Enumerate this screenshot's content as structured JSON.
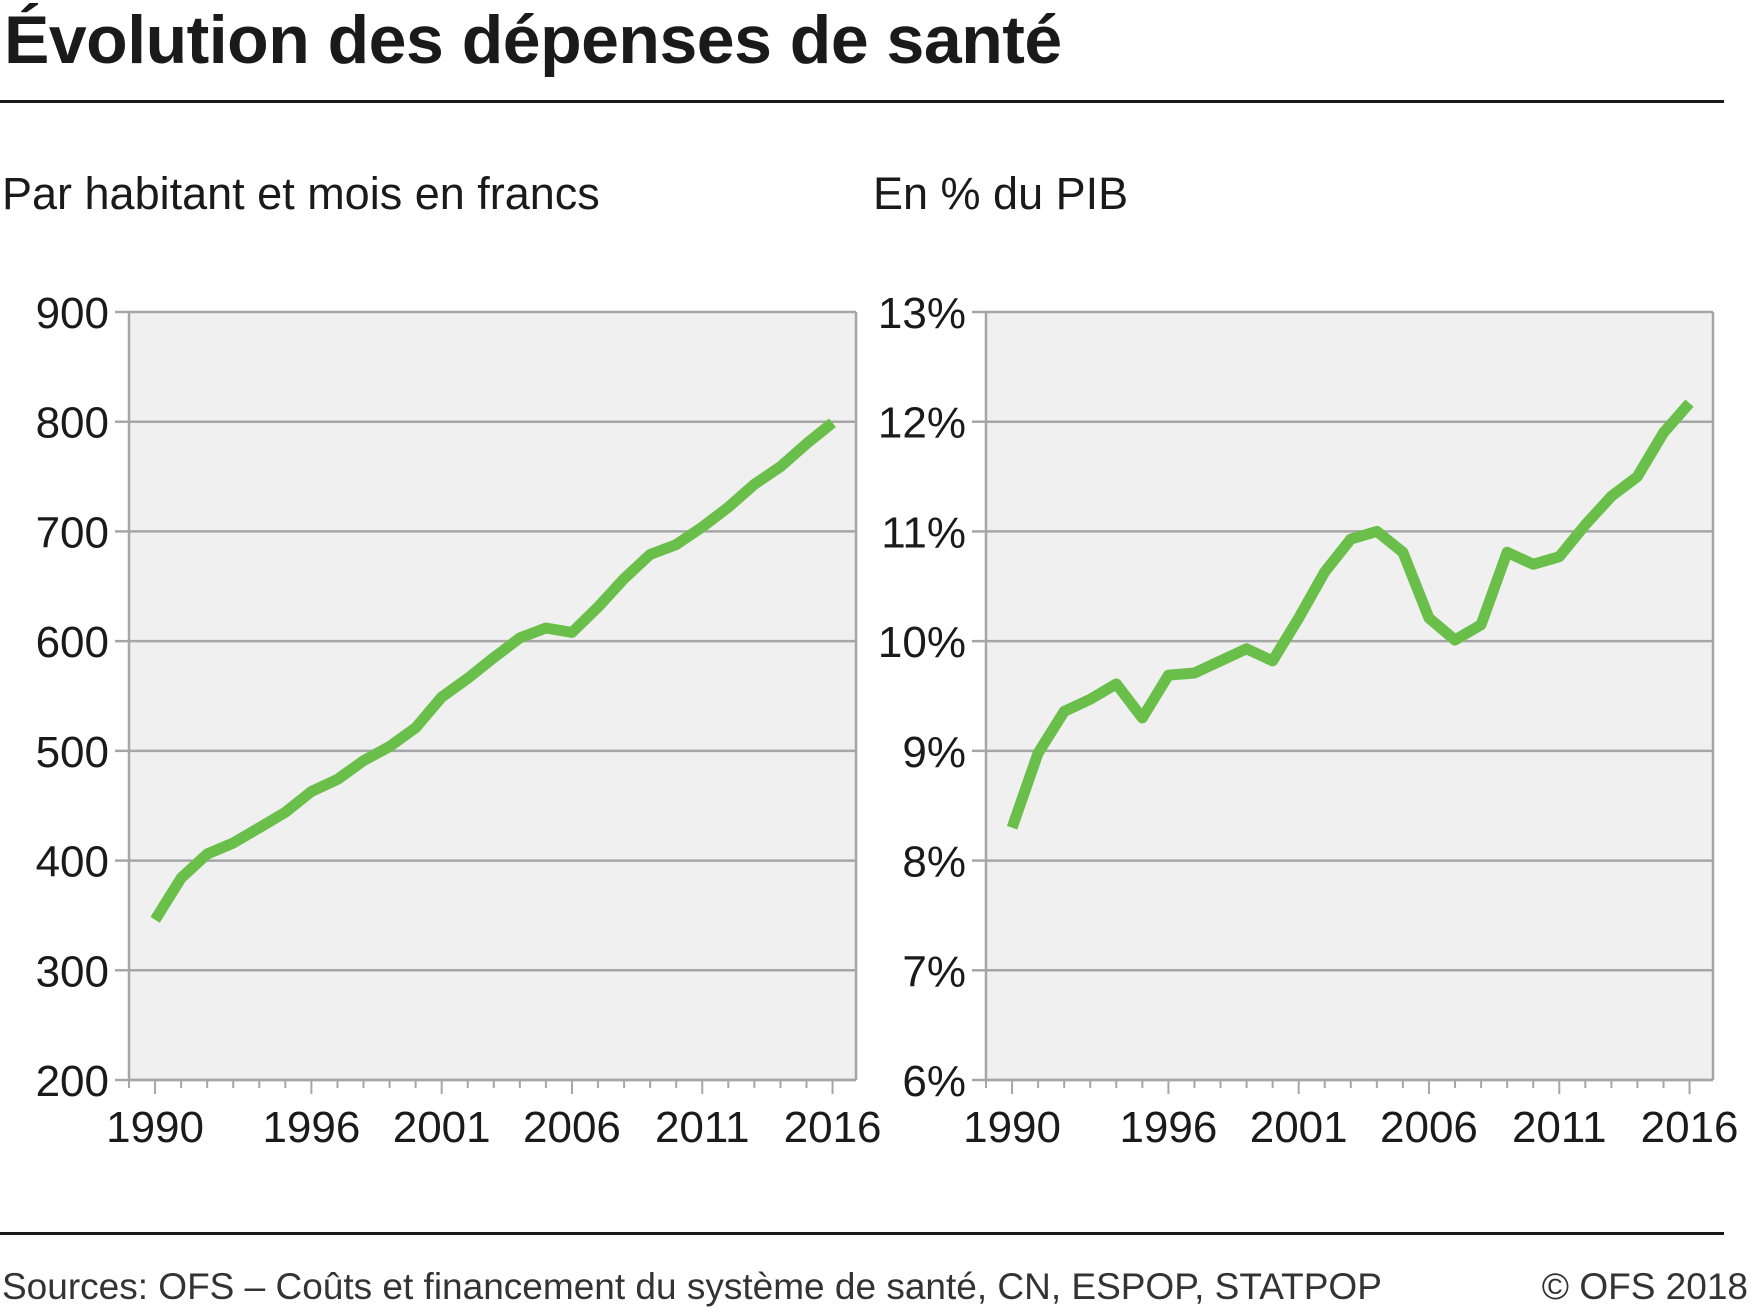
{
  "header": {
    "title": "Évolution des dépenses de santé"
  },
  "footer": {
    "source": "Sources: OFS – Coûts et financement du système de santé, CN, ESPOP, STATPOP",
    "copyright": "© OFS 2018"
  },
  "colors": {
    "line": "#6abf4b",
    "plot_background": "#f0f0f0",
    "grid": "#a6a6a6",
    "rule": "#1a1a1a"
  },
  "chart_data": [
    {
      "type": "line",
      "title": "Par habitant et mois en francs",
      "xlabel": "",
      "ylabel": "",
      "grid": true,
      "xlim": [
        1989,
        2016.9
      ],
      "ylim": [
        200,
        900
      ],
      "y_ticks": [
        200,
        300,
        400,
        500,
        600,
        700,
        800,
        900
      ],
      "y_tick_labels": [
        "200",
        "300",
        "400",
        "500",
        "600",
        "700",
        "800",
        "900"
      ],
      "x_ticks": [
        1990,
        1996,
        2001,
        2006,
        2011,
        2016
      ],
      "x_tick_labels": [
        "1990",
        "1996",
        "2001",
        "2006",
        "2011",
        "2016"
      ],
      "x": [
        1990,
        1991,
        1992,
        1993,
        1994,
        1995,
        1996,
        1997,
        1998,
        1999,
        2000,
        2001,
        2002,
        2003,
        2004,
        2005,
        2006,
        2007,
        2008,
        2009,
        2010,
        2011,
        2012,
        2013,
        2014,
        2015,
        2016
      ],
      "series": [
        {
          "values": [
            346,
            384,
            406,
            416,
            430,
            444,
            463,
            474,
            491,
            504,
            521,
            549,
            566,
            585,
            603,
            612,
            608,
            631,
            657,
            679,
            688,
            704,
            722,
            743,
            759,
            780,
            799
          ]
        }
      ]
    },
    {
      "type": "line",
      "title": "En % du PIB",
      "xlabel": "",
      "ylabel": "",
      "grid": true,
      "xlim": [
        1989,
        2016.9
      ],
      "ylim": [
        6,
        13
      ],
      "y_ticks": [
        6,
        7,
        8,
        9,
        10,
        11,
        12,
        13
      ],
      "y_tick_labels": [
        "6%",
        "7%",
        "8%",
        "9%",
        "10%",
        "11%",
        "12%",
        "13%"
      ],
      "x_ticks": [
        1990,
        1996,
        2001,
        2006,
        2011,
        2016
      ],
      "x_tick_labels": [
        "1990",
        "1996",
        "2001",
        "2006",
        "2011",
        "2016"
      ],
      "x": [
        1990,
        1991,
        1992,
        1993,
        1994,
        1995,
        1996,
        1997,
        1998,
        1999,
        2000,
        2001,
        2002,
        2003,
        2004,
        2005,
        2006,
        2007,
        2008,
        2009,
        2010,
        2011,
        2012,
        2013,
        2014,
        2015,
        2016
      ],
      "series": [
        {
          "values": [
            8.3,
            8.98,
            9.36,
            9.47,
            9.61,
            9.3,
            9.69,
            9.71,
            9.82,
            9.93,
            9.82,
            10.21,
            10.63,
            10.93,
            11.0,
            10.81,
            10.21,
            10.01,
            10.15,
            10.81,
            10.7,
            10.77,
            11.06,
            11.32,
            11.5,
            11.9,
            12.17
          ]
        }
      ]
    }
  ]
}
